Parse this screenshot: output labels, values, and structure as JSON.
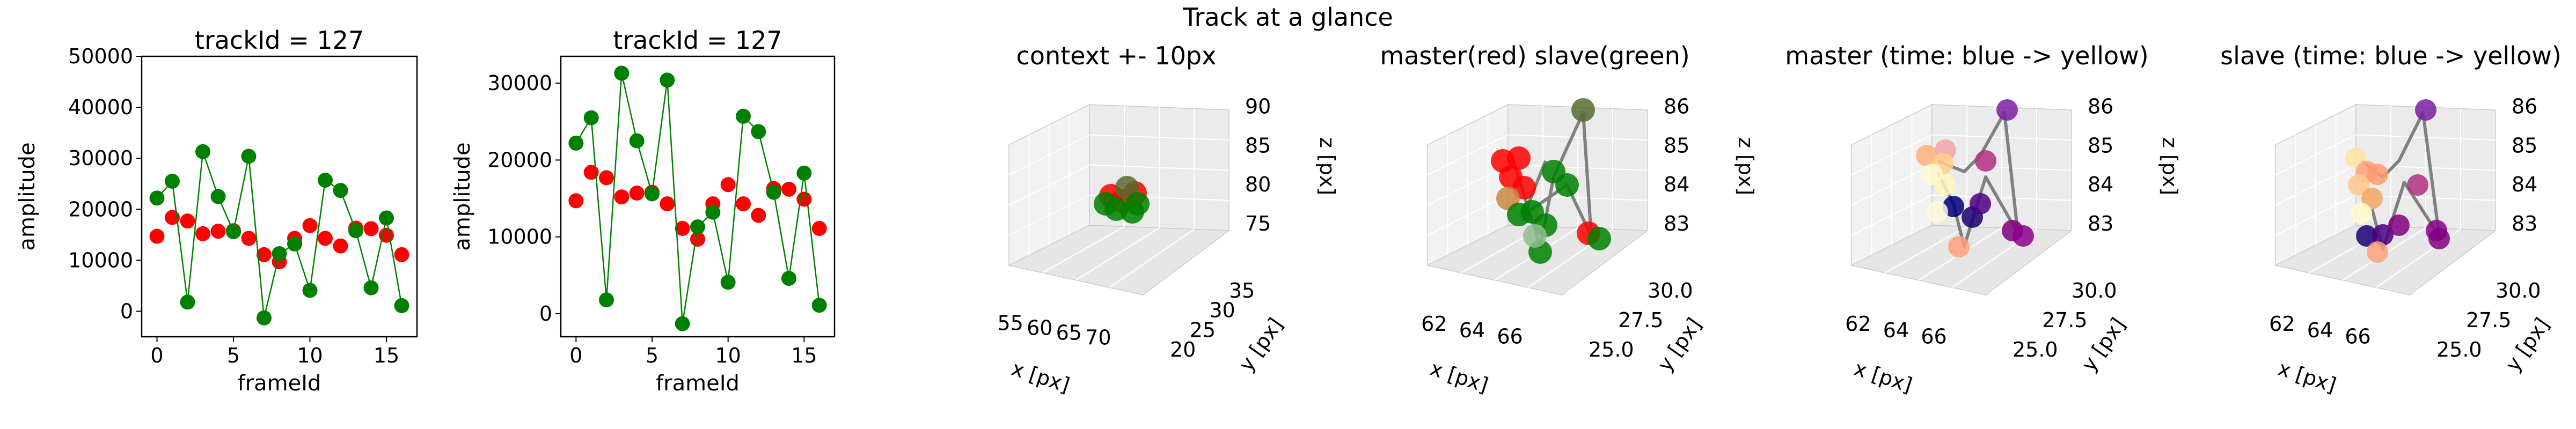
{
  "figure": {
    "suptitle": "Track at a glance"
  },
  "chart_data": [
    {
      "type": "line",
      "title": "trackId = 127",
      "xlabel": "frameId",
      "ylabel": "amplitude",
      "xlim": [
        -1,
        17
      ],
      "ylim": [
        -5000,
        50000
      ],
      "xticks": [
        0,
        5,
        10,
        15
      ],
      "yticks": [
        0,
        10000,
        20000,
        30000,
        40000,
        50000
      ],
      "grid": false,
      "series": [
        {
          "color": "#ff0000",
          "line": false,
          "x": [
            0,
            1,
            2,
            3,
            4,
            5,
            6,
            7,
            8,
            9,
            10,
            11,
            12,
            13,
            14,
            15,
            16
          ],
          "values": [
            14700,
            18400,
            17700,
            15200,
            15700,
            15800,
            14300,
            11100,
            9700,
            14300,
            16800,
            14300,
            12800,
            16300,
            16200,
            14900,
            11100
          ]
        },
        {
          "color": "#008000",
          "line": true,
          "x": [
            0,
            1,
            2,
            3,
            4,
            5,
            6,
            7,
            8,
            9,
            10,
            11,
            12,
            13,
            14,
            15,
            16
          ],
          "values": [
            22200,
            25500,
            1800,
            31300,
            22500,
            15600,
            30400,
            -1300,
            11300,
            13200,
            4100,
            25700,
            23700,
            15800,
            4600,
            18300,
            1100
          ]
        }
      ]
    },
    {
      "type": "line",
      "title": "trackId = 127",
      "xlabel": "frameId",
      "ylabel": "amplitude",
      "xlim": [
        -1,
        17
      ],
      "ylim": [
        -3000,
        33500
      ],
      "xticks": [
        0,
        5,
        10,
        15
      ],
      "yticks": [
        0,
        10000,
        20000,
        30000
      ],
      "grid": false,
      "series": [
        {
          "color": "#ff0000",
          "line": false,
          "x": [
            0,
            1,
            2,
            3,
            4,
            5,
            6,
            7,
            8,
            9,
            10,
            11,
            12,
            13,
            14,
            15,
            16
          ],
          "values": [
            14700,
            18400,
            17700,
            15200,
            15700,
            15800,
            14300,
            11100,
            9700,
            14300,
            16800,
            14300,
            12800,
            16300,
            16200,
            14900,
            11100
          ]
        },
        {
          "color": "#008000",
          "line": true,
          "x": [
            0,
            1,
            2,
            3,
            4,
            5,
            6,
            7,
            8,
            9,
            10,
            11,
            12,
            13,
            14,
            15,
            16
          ],
          "values": [
            22200,
            25500,
            1800,
            31300,
            22500,
            15600,
            30400,
            -1300,
            11300,
            13200,
            4100,
            25700,
            23700,
            15800,
            4600,
            18300,
            1100
          ]
        }
      ]
    },
    {
      "type": "scatter",
      "title": "context +- 10px",
      "xlabel": "x [px]",
      "ylabel": "y [px]",
      "zlabel": "z [px]",
      "xticks": [
        "55",
        "60",
        "65",
        "70"
      ],
      "yticks": [
        "20",
        "25",
        "30",
        "35"
      ],
      "zticks": [
        "75",
        "80",
        "85",
        "90"
      ],
      "points": {
        "master": 8,
        "slave": 8
      }
    },
    {
      "type": "scatter",
      "title": "master(red) slave(green)",
      "xlabel": "x [px]",
      "ylabel": "y [px]",
      "zlabel": "z [px]",
      "xticks": [
        "62",
        "64",
        "66"
      ],
      "yticks": [
        "25.0",
        "27.5",
        "30.0"
      ],
      "zticks": [
        "83",
        "84",
        "85",
        "86"
      ],
      "colors": {
        "master": "#ff0000",
        "slave": "#008000",
        "path": "#808080"
      }
    },
    {
      "type": "scatter",
      "title": "master (time: blue -> yellow)",
      "xlabel": "x [px]",
      "ylabel": "y [px]",
      "zlabel": "z [px]",
      "xticks": [
        "62",
        "64",
        "66"
      ],
      "yticks": [
        "25.0",
        "27.5",
        "30.0"
      ],
      "zticks": [
        "83",
        "84",
        "85",
        "86"
      ]
    },
    {
      "type": "scatter",
      "title": "slave (time: blue -> yellow)",
      "xlabel": "x [px]",
      "ylabel": "y [px]",
      "zlabel": "z [px]",
      "xticks": [
        "62",
        "64",
        "66"
      ],
      "yticks": [
        "25.0",
        "27.5",
        "30.0"
      ],
      "zticks": [
        "83",
        "84",
        "85",
        "86"
      ]
    }
  ]
}
